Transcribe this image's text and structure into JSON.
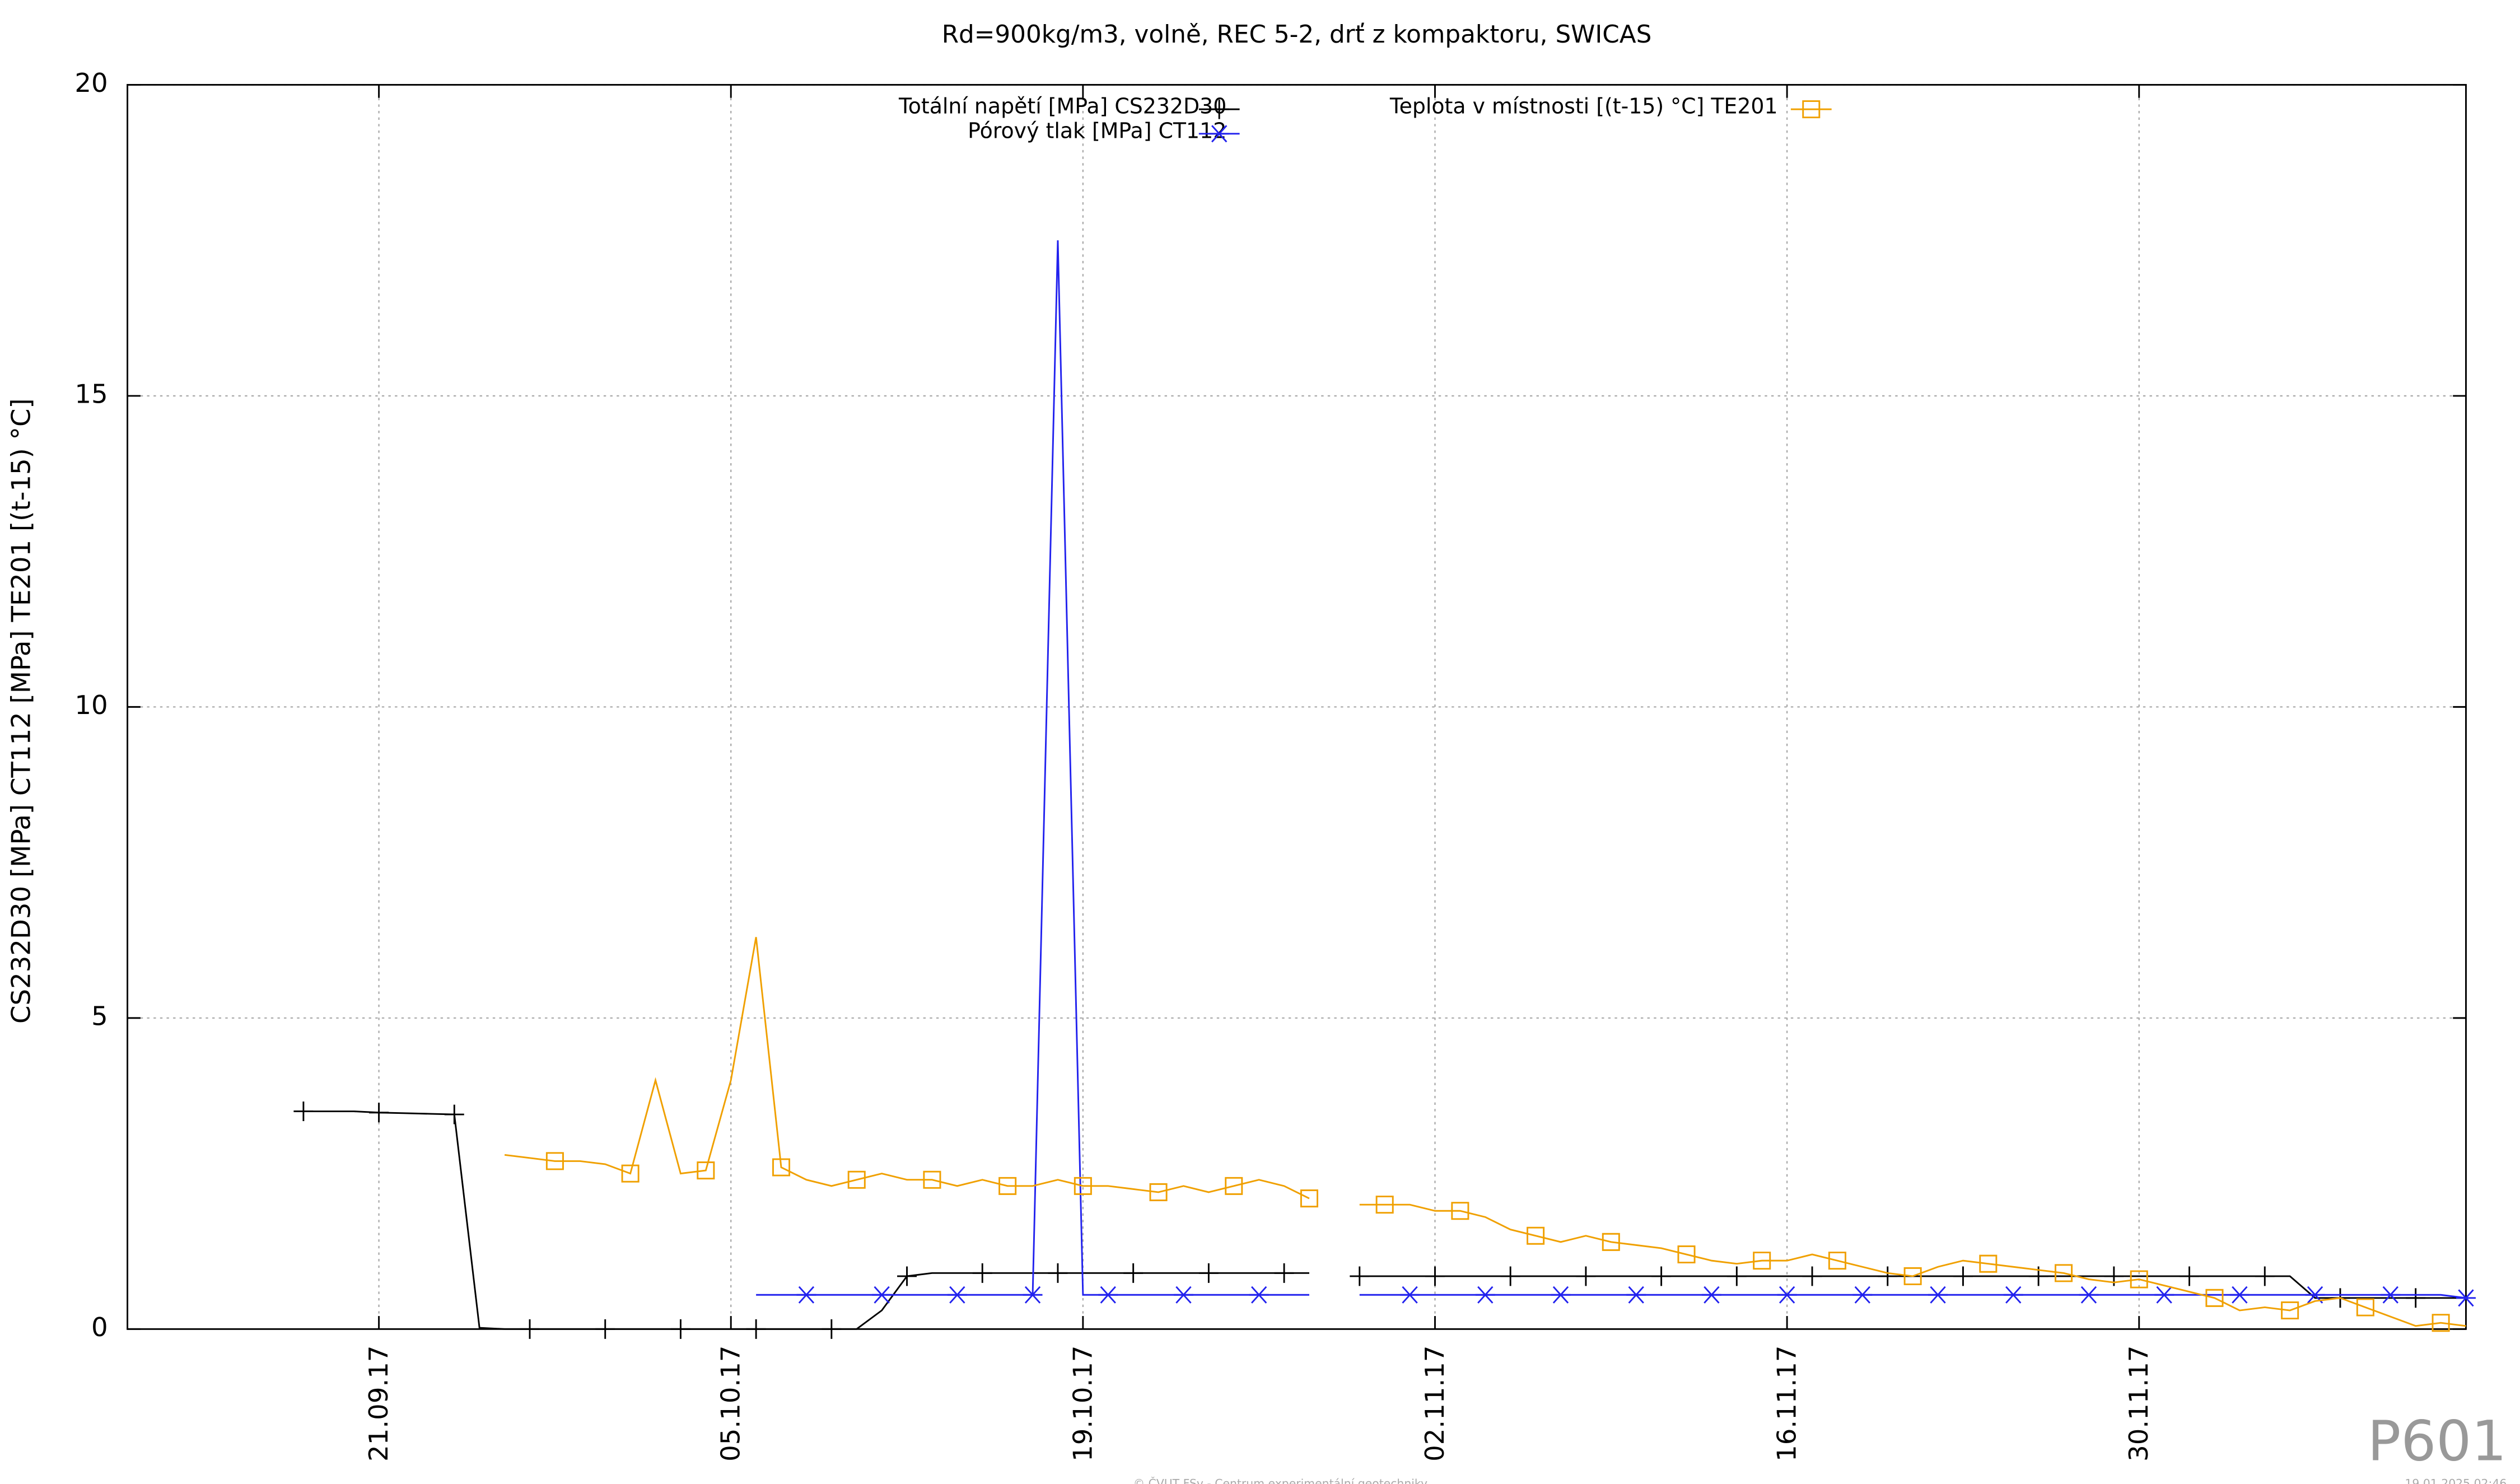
{
  "chart_data": {
    "type": "line",
    "title": "Rd=900kg/m3, volně, REC 5-2, drť z kompaktoru, SWICAS",
    "ylabel": "CS232D30 [MPa] CT112 [MPa] TE201 [(t-15) °C]",
    "watermark": "P601",
    "footer": "© ČVUT FSv - Centrum experimentální geotechniky",
    "timestamp": "19.01.2025 02:46",
    "grid": true,
    "ylim": [
      0,
      20
    ],
    "yticks": [
      0,
      5,
      10,
      15,
      20
    ],
    "xlim": [
      "2017-09-11",
      "2017-12-13"
    ],
    "xticks": [
      {
        "value": "2017-09-21",
        "label": "21.09.17"
      },
      {
        "value": "2017-10-05",
        "label": "05.10.17"
      },
      {
        "value": "2017-10-19",
        "label": "19.10.17"
      },
      {
        "value": "2017-11-02",
        "label": "02.11.17"
      },
      {
        "value": "2017-11-16",
        "label": "16.11.17"
      },
      {
        "value": "2017-11-30",
        "label": "30.11.17"
      }
    ],
    "x": [
      "2017-09-18",
      "2017-09-19",
      "2017-09-20",
      "2017-09-21",
      "2017-09-22",
      "2017-09-23",
      "2017-09-24",
      "2017-09-25",
      "2017-09-26",
      "2017-09-27",
      "2017-09-28",
      "2017-09-29",
      "2017-09-30",
      "2017-10-01",
      "2017-10-02",
      "2017-10-03",
      "2017-10-04",
      "2017-10-05",
      "2017-10-06",
      "2017-10-07",
      "2017-10-08",
      "2017-10-09",
      "2017-10-10",
      "2017-10-11",
      "2017-10-12",
      "2017-10-13",
      "2017-10-14",
      "2017-10-15",
      "2017-10-16",
      "2017-10-17",
      "2017-10-18",
      "2017-10-19",
      "2017-10-20",
      "2017-10-21",
      "2017-10-22",
      "2017-10-23",
      "2017-10-24",
      "2017-10-25",
      "2017-10-26",
      "2017-10-27",
      "2017-10-28",
      "2017-10-29",
      "2017-10-30",
      "2017-10-31",
      "2017-11-01",
      "2017-11-02",
      "2017-11-03",
      "2017-11-04",
      "2017-11-05",
      "2017-11-06",
      "2017-11-07",
      "2017-11-08",
      "2017-11-09",
      "2017-11-10",
      "2017-11-11",
      "2017-11-12",
      "2017-11-13",
      "2017-11-14",
      "2017-11-15",
      "2017-11-16",
      "2017-11-17",
      "2017-11-18",
      "2017-11-19",
      "2017-11-20",
      "2017-11-21",
      "2017-11-22",
      "2017-11-23",
      "2017-11-24",
      "2017-11-25",
      "2017-11-26",
      "2017-11-27",
      "2017-11-28",
      "2017-11-29",
      "2017-11-30",
      "2017-12-01",
      "2017-12-02",
      "2017-12-03",
      "2017-12-04",
      "2017-12-05",
      "2017-12-06",
      "2017-12-07",
      "2017-12-08",
      "2017-12-09",
      "2017-12-10",
      "2017-12-11",
      "2017-12-12",
      "2017-12-13"
    ],
    "series": [
      {
        "name": "Totální napětí [MPa] CS232D30",
        "color": "#000000",
        "marker": "plus",
        "values": [
          3.5,
          3.5,
          3.5,
          3.48,
          3.47,
          3.46,
          3.45,
          0.02,
          0,
          0,
          0,
          0,
          0,
          0,
          0,
          0,
          0,
          0,
          0,
          0,
          0,
          0,
          0,
          0.3,
          0.85,
          0.9,
          0.9,
          0.9,
          0.9,
          0.9,
          0.9,
          0.9,
          0.9,
          0.9,
          0.9,
          0.9,
          0.9,
          0.9,
          0.9,
          0.9,
          0.9,
          null,
          0.85,
          0.85,
          0.85,
          0.85,
          0.85,
          0.85,
          0.85,
          0.85,
          0.85,
          0.85,
          0.85,
          0.85,
          0.85,
          0.85,
          0.85,
          0.85,
          0.85,
          0.85,
          0.85,
          0.85,
          0.85,
          0.85,
          0.85,
          0.85,
          0.85,
          0.85,
          0.85,
          0.85,
          0.85,
          0.85,
          0.85,
          0.85,
          0.85,
          0.85,
          0.85,
          0.85,
          0.85,
          0.85,
          0.5,
          0.5,
          0.5,
          0.5,
          0.5,
          0.5,
          0.5
        ]
      },
      {
        "name": "Pórový tlak [MPa] CT112",
        "color": "#2222ee",
        "marker": "star",
        "values": [
          null,
          null,
          null,
          null,
          null,
          null,
          null,
          null,
          null,
          null,
          null,
          null,
          null,
          null,
          null,
          null,
          null,
          null,
          0.55,
          0.55,
          0.55,
          0.55,
          0.55,
          0.55,
          0.55,
          0.55,
          0.55,
          0.55,
          0.55,
          0.55,
          17.5,
          0.55,
          0.55,
          0.55,
          0.55,
          0.55,
          0.55,
          0.55,
          0.55,
          0.55,
          0.55,
          null,
          0.55,
          0.55,
          0.55,
          0.55,
          0.55,
          0.55,
          0.55,
          0.55,
          0.55,
          0.55,
          0.55,
          0.55,
          0.55,
          0.55,
          0.55,
          0.55,
          0.55,
          0.55,
          0.55,
          0.55,
          0.55,
          0.55,
          0.55,
          0.55,
          0.55,
          0.55,
          0.55,
          0.55,
          0.55,
          0.55,
          0.55,
          0.55,
          0.55,
          0.55,
          0.55,
          0.55,
          0.55,
          0.55,
          0.55,
          0.55,
          0.55,
          0.55,
          0.55,
          0.55,
          0.5
        ]
      },
      {
        "name": "Teplota v místnosti [(t-15) °C] TE201",
        "color": "#f0a000",
        "marker": "square",
        "values": [
          null,
          null,
          null,
          null,
          null,
          null,
          null,
          null,
          2.8,
          2.75,
          2.7,
          2.7,
          2.65,
          2.5,
          4.0,
          2.5,
          2.55,
          4.0,
          6.3,
          2.6,
          2.4,
          2.3,
          2.4,
          2.5,
          2.4,
          2.4,
          2.3,
          2.4,
          2.3,
          2.3,
          2.4,
          2.3,
          2.3,
          2.25,
          2.2,
          2.3,
          2.2,
          2.3,
          2.4,
          2.3,
          2.1,
          null,
          2.0,
          2.0,
          2.0,
          1.9,
          1.9,
          1.8,
          1.6,
          1.5,
          1.4,
          1.5,
          1.4,
          1.35,
          1.3,
          1.2,
          1.1,
          1.05,
          1.1,
          1.1,
          1.2,
          1.1,
          1.0,
          0.9,
          0.85,
          1.0,
          1.1,
          1.05,
          1.0,
          0.95,
          0.9,
          0.8,
          0.75,
          0.8,
          0.7,
          0.6,
          0.5,
          0.3,
          0.35,
          0.3,
          0.45,
          0.5,
          0.35,
          0.2,
          0.05,
          0.1,
          0.05
        ]
      }
    ]
  }
}
